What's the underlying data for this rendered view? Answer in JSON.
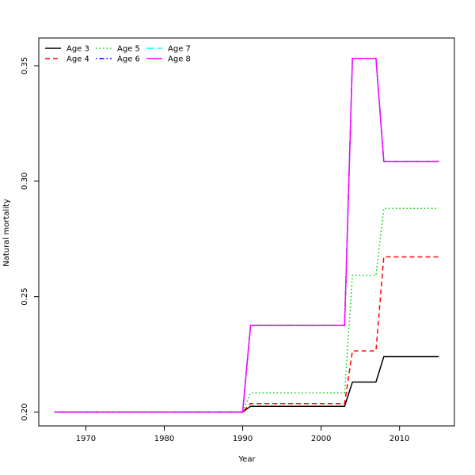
{
  "chart_data": {
    "type": "line",
    "title": "",
    "xlabel": "Year",
    "ylabel": "Natural mortality",
    "xlim": [
      1964,
      2017
    ],
    "ylim": [
      0.194,
      0.362
    ],
    "xticks": [
      1970,
      1980,
      1990,
      2000,
      2010
    ],
    "yticks": [
      0.2,
      0.25,
      0.3,
      0.35
    ],
    "ytick_labels": [
      "0.20",
      "0.25",
      "0.30",
      "0.35"
    ],
    "grid": false,
    "legend_position": "top-left",
    "x": [
      1966,
      1990,
      1991,
      2003,
      2004,
      2007,
      2008,
      2015
    ],
    "series": [
      {
        "name": "Age 3",
        "color": "#000000",
        "dash": "solid",
        "values": [
          0.2,
          0.2,
          0.2025,
          0.2025,
          0.213,
          0.213,
          0.224,
          0.224
        ]
      },
      {
        "name": "Age 4",
        "color": "#ff0000",
        "dash": "dashed",
        "values": [
          0.2,
          0.2,
          0.2037,
          0.2037,
          0.2265,
          0.2265,
          0.2672,
          0.2672
        ]
      },
      {
        "name": "Age 5",
        "color": "#00cd00",
        "dash": "dotted",
        "values": [
          0.2,
          0.2,
          0.2083,
          0.2083,
          0.2592,
          0.2592,
          0.2882,
          0.2882
        ]
      },
      {
        "name": "Age 6",
        "color": "#0000ff",
        "dash": "dotdash",
        "values": [
          0.2,
          0.2,
          0.2375,
          0.2375,
          0.3532,
          0.3532,
          0.3085,
          0.3085
        ]
      },
      {
        "name": "Age 7",
        "color": "#00ffff",
        "dash": "longdash",
        "values": [
          0.2,
          0.2,
          0.2375,
          0.2375,
          0.3532,
          0.3532,
          0.3085,
          0.3085
        ]
      },
      {
        "name": "Age 8",
        "color": "#ff00ff",
        "dash": "solid",
        "values": [
          0.2,
          0.2,
          0.2375,
          0.2375,
          0.3532,
          0.3532,
          0.3085,
          0.3085
        ]
      }
    ]
  }
}
